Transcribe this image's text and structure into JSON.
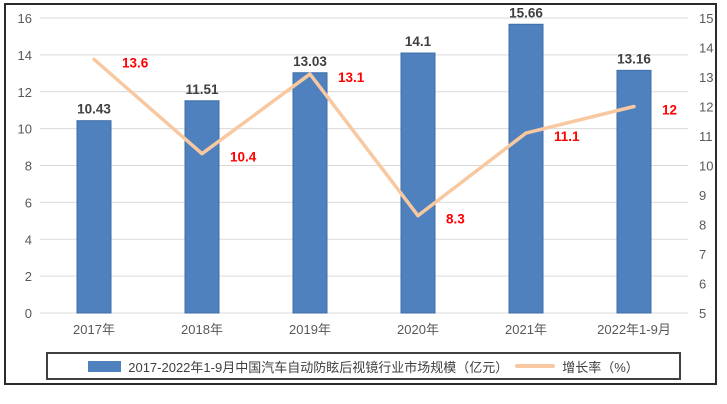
{
  "chart_data": {
    "type": "bar",
    "combo": "bar+line",
    "title": "",
    "categories": [
      "2017年",
      "2018年",
      "2019年",
      "2020年",
      "2021年",
      "2022年1-9月"
    ],
    "series": [
      {
        "name": "2017-2022年1-9月中国汽车自动防眩后视镜行业市场规模（亿元）",
        "type": "bar",
        "axis": "left",
        "values": [
          10.43,
          11.51,
          13.03,
          14.1,
          15.66,
          13.16
        ],
        "labels": [
          "10.43",
          "11.51",
          "13.03",
          "14.1",
          "15.66",
          "13.16"
        ],
        "color": "#4e81bd",
        "border_color": "#3c6da8",
        "label_color": "#3f3f3f"
      },
      {
        "name": "增长率（%）",
        "type": "line",
        "axis": "right",
        "values": [
          13.6,
          10.4,
          13.1,
          8.3,
          11.1,
          12
        ],
        "labels": [
          "13.6",
          "10.4",
          "13.1",
          "8.3",
          "11.1",
          "12"
        ],
        "color": "#f8c8a0",
        "label_color": "#ff0000"
      }
    ],
    "left_axis": {
      "min": 0,
      "max": 16,
      "step": 2,
      "ticks": [
        "0",
        "2",
        "4",
        "6",
        "8",
        "10",
        "12",
        "14",
        "16"
      ]
    },
    "right_axis": {
      "min": 5,
      "max": 15,
      "step": 1,
      "ticks": [
        "5",
        "6",
        "7",
        "8",
        "9",
        "10",
        "11",
        "12",
        "13",
        "14",
        "15"
      ]
    },
    "grid": true,
    "gridline_color": "#d9d9d9",
    "tick_label_color": "#595959",
    "legend_position": "bottom"
  }
}
